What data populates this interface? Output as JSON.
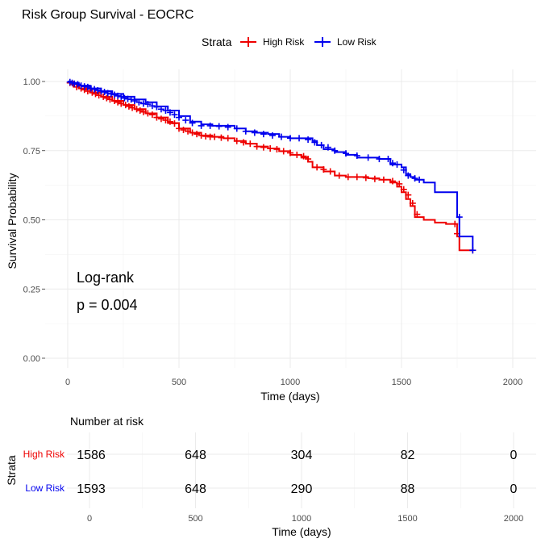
{
  "chart_data": [
    {
      "type": "line",
      "subtype": "kaplan-meier",
      "title": "Risk Group Survival - EOCRC",
      "xlabel": "Time (days)",
      "ylabel": "Survival Probability",
      "xlim": [
        0,
        2000
      ],
      "ylim": [
        0,
        1
      ],
      "x_ticks": [
        "0",
        "500",
        "1000",
        "1500",
        "2000"
      ],
      "y_ticks": [
        "0.00",
        "0.25",
        "0.50",
        "0.75",
        "1.00"
      ],
      "grid": true,
      "legend": {
        "title": "Strata",
        "placement": "top"
      },
      "annotation": {
        "line1": "Log-rank",
        "line2": "p = 0.004"
      },
      "series": [
        {
          "name": "High Risk",
          "color": "#ee0000",
          "x": [
            0,
            20,
            50,
            100,
            150,
            200,
            250,
            300,
            350,
            400,
            450,
            500,
            550,
            600,
            650,
            700,
            750,
            800,
            850,
            900,
            950,
            1000,
            1050,
            1080,
            1100,
            1150,
            1200,
            1250,
            1300,
            1350,
            1400,
            1450,
            1480,
            1500,
            1520,
            1540,
            1560,
            1600,
            1650,
            1700,
            1740,
            1750,
            1760,
            1820
          ],
          "y": [
            1.0,
            0.99,
            0.975,
            0.96,
            0.945,
            0.93,
            0.915,
            0.9,
            0.885,
            0.87,
            0.85,
            0.83,
            0.815,
            0.805,
            0.8,
            0.795,
            0.785,
            0.775,
            0.765,
            0.758,
            0.748,
            0.735,
            0.725,
            0.71,
            0.69,
            0.675,
            0.66,
            0.655,
            0.655,
            0.65,
            0.645,
            0.635,
            0.62,
            0.6,
            0.575,
            0.55,
            0.51,
            0.5,
            0.49,
            0.485,
            0.485,
            0.44,
            0.39,
            0.39
          ],
          "censor_x": [
            10,
            25,
            40,
            60,
            75,
            90,
            110,
            125,
            140,
            160,
            175,
            190,
            210,
            225,
            240,
            260,
            275,
            290,
            310,
            325,
            340,
            360,
            380,
            400,
            420,
            440,
            460,
            480,
            500,
            520,
            540,
            560,
            580,
            600,
            620,
            640,
            660,
            690,
            720,
            760,
            790,
            820,
            850,
            880,
            910,
            940,
            970,
            1000,
            1030,
            1060,
            1080,
            1120,
            1150,
            1180,
            1220,
            1260,
            1300,
            1340,
            1380,
            1420,
            1460,
            1490,
            1510,
            1530,
            1550,
            1570,
            1740,
            1750,
            1820
          ],
          "censor_y": [
            0.995,
            0.99,
            0.98,
            0.975,
            0.97,
            0.965,
            0.96,
            0.955,
            0.95,
            0.945,
            0.94,
            0.935,
            0.93,
            0.925,
            0.92,
            0.915,
            0.91,
            0.905,
            0.9,
            0.895,
            0.89,
            0.885,
            0.88,
            0.87,
            0.865,
            0.86,
            0.855,
            0.848,
            0.83,
            0.825,
            0.82,
            0.815,
            0.81,
            0.805,
            0.802,
            0.8,
            0.8,
            0.797,
            0.795,
            0.785,
            0.78,
            0.775,
            0.765,
            0.762,
            0.758,
            0.755,
            0.748,
            0.742,
            0.735,
            0.73,
            0.72,
            0.69,
            0.682,
            0.675,
            0.66,
            0.655,
            0.655,
            0.652,
            0.648,
            0.645,
            0.64,
            0.63,
            0.61,
            0.59,
            0.56,
            0.52,
            0.485,
            0.45,
            0.39
          ]
        },
        {
          "name": "Low Risk",
          "color": "#0000ee",
          "x": [
            0,
            20,
            50,
            100,
            150,
            200,
            250,
            300,
            350,
            400,
            450,
            500,
            550,
            600,
            650,
            700,
            750,
            800,
            850,
            900,
            950,
            1000,
            1050,
            1100,
            1120,
            1150,
            1200,
            1250,
            1300,
            1350,
            1400,
            1450,
            1500,
            1520,
            1540,
            1560,
            1600,
            1650,
            1700,
            1750,
            1760,
            1820
          ],
          "y": [
            1.0,
            0.995,
            0.985,
            0.975,
            0.965,
            0.955,
            0.945,
            0.935,
            0.925,
            0.91,
            0.895,
            0.875,
            0.855,
            0.845,
            0.84,
            0.84,
            0.83,
            0.82,
            0.815,
            0.81,
            0.8,
            0.795,
            0.795,
            0.785,
            0.77,
            0.755,
            0.745,
            0.735,
            0.725,
            0.725,
            0.72,
            0.7,
            0.69,
            0.665,
            0.655,
            0.645,
            0.635,
            0.6,
            0.6,
            0.51,
            0.44,
            0.39
          ],
          "censor_x": [
            10,
            20,
            30,
            45,
            60,
            75,
            90,
            105,
            120,
            135,
            150,
            165,
            180,
            195,
            210,
            225,
            240,
            255,
            270,
            285,
            300,
            320,
            340,
            360,
            380,
            400,
            420,
            440,
            460,
            480,
            500,
            530,
            560,
            600,
            640,
            680,
            720,
            760,
            800,
            840,
            880,
            920,
            960,
            1000,
            1040,
            1080,
            1110,
            1140,
            1170,
            1200,
            1250,
            1300,
            1350,
            1400,
            1440,
            1460,
            1480,
            1510,
            1530,
            1560,
            1580,
            1760,
            1820
          ],
          "censor_y": [
            0.998,
            0.995,
            0.992,
            0.99,
            0.985,
            0.982,
            0.98,
            0.975,
            0.972,
            0.968,
            0.965,
            0.962,
            0.958,
            0.955,
            0.952,
            0.948,
            0.945,
            0.94,
            0.937,
            0.935,
            0.93,
            0.925,
            0.92,
            0.918,
            0.912,
            0.908,
            0.9,
            0.895,
            0.888,
            0.88,
            0.87,
            0.86,
            0.85,
            0.84,
            0.84,
            0.838,
            0.835,
            0.83,
            0.82,
            0.815,
            0.81,
            0.805,
            0.8,
            0.795,
            0.795,
            0.79,
            0.78,
            0.77,
            0.762,
            0.75,
            0.74,
            0.732,
            0.725,
            0.72,
            0.72,
            0.705,
            0.7,
            0.68,
            0.66,
            0.65,
            0.645,
            0.51,
            0.39
          ]
        }
      ]
    },
    {
      "type": "table",
      "title": "Number at risk",
      "xlabel": "Time (days)",
      "ylabel": "Strata",
      "xlim": [
        0,
        2000
      ],
      "x_ticks": [
        "0",
        "500",
        "1000",
        "1500",
        "2000"
      ],
      "grid": true,
      "rows": [
        {
          "name": "High Risk",
          "color": "#ee0000",
          "x": [
            0,
            500,
            1000,
            1500,
            2000
          ],
          "values": [
            "1586",
            "648",
            "304",
            "82",
            "0"
          ]
        },
        {
          "name": "Low Risk",
          "color": "#0000ee",
          "x": [
            0,
            500,
            1000,
            1500,
            2000
          ],
          "values": [
            "1593",
            "648",
            "290",
            "88",
            "0"
          ]
        }
      ]
    }
  ]
}
